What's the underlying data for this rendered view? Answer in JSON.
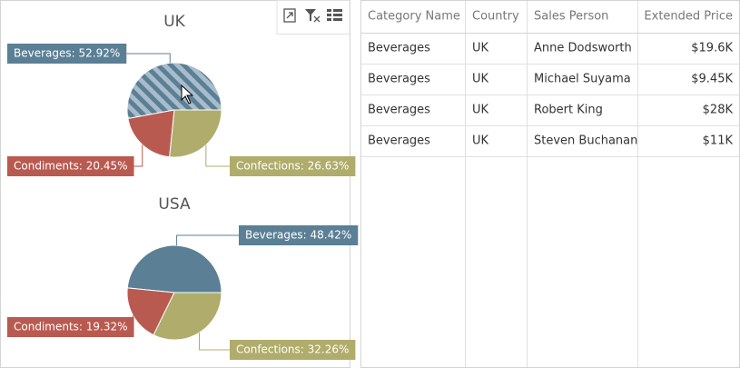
{
  "chart_data": [
    {
      "type": "pie",
      "title": "UK",
      "values": [
        52.92,
        20.45,
        26.63
      ],
      "value_labels": [
        "Beverages: 52.92%",
        "Condiments: 20.45%",
        "Confections: 26.63%"
      ],
      "colors": [
        "#5b7f95",
        "#b95a50",
        "#b0ac6b"
      ],
      "highlighted": 0
    },
    {
      "type": "pie",
      "title": "USA",
      "values": [
        48.42,
        19.32,
        32.26
      ],
      "value_labels": [
        "Beverages: 48.42%",
        "Condiments: 19.32%",
        "Confections: 32.26%"
      ],
      "colors": [
        "#5b7f95",
        "#b95a50",
        "#b0ac6b"
      ]
    }
  ],
  "table": {
    "columns": [
      "Category Name",
      "Country",
      "Sales Person",
      "Extended Price"
    ],
    "rows": [
      [
        "Beverages",
        "UK",
        "Anne Dodsworth",
        "$19.6K"
      ],
      [
        "Beverages",
        "UK",
        "Michael Suyama",
        "$9.45K"
      ],
      [
        "Beverages",
        "UK",
        "Robert King",
        "$28K"
      ],
      [
        "Beverages",
        "UK",
        "Steven Buchanan",
        "$11K"
      ]
    ]
  }
}
